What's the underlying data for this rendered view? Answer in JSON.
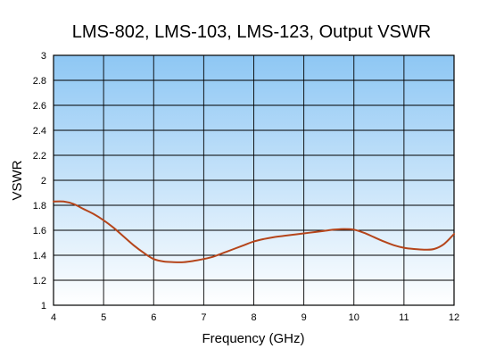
{
  "chart_data": {
    "type": "line",
    "title": "LMS-802, LMS-103, LMS-123, Output VSWR",
    "xlabel": "Frequency (GHz)",
    "ylabel": "VSWR",
    "xlim": [
      4,
      12
    ],
    "ylim": [
      1,
      3
    ],
    "x_ticks": [
      "4",
      "5",
      "6",
      "7",
      "8",
      "9",
      "10",
      "11",
      "12"
    ],
    "y_ticks": [
      "1",
      "1.2",
      "1.4",
      "1.6",
      "1.8",
      "2",
      "2.2",
      "2.4",
      "2.6",
      "2.8",
      "3"
    ],
    "grid": true,
    "legend": "none",
    "background_gradient": [
      "#8ec7f4",
      "#ffffff"
    ],
    "series": [
      {
        "color": "#b5451b",
        "x": [
          4.0,
          4.2,
          4.4,
          4.6,
          4.8,
          5.0,
          5.2,
          5.4,
          5.6,
          5.8,
          6.0,
          6.2,
          6.4,
          6.6,
          6.8,
          7.0,
          7.2,
          7.4,
          7.6,
          7.8,
          8.0,
          8.2,
          8.4,
          8.6,
          8.8,
          9.0,
          9.2,
          9.4,
          9.6,
          9.8,
          10.0,
          10.2,
          10.4,
          10.6,
          10.8,
          11.0,
          11.2,
          11.4,
          11.6,
          11.8,
          12.0
        ],
        "y": [
          1.83,
          1.83,
          1.81,
          1.77,
          1.73,
          1.68,
          1.62,
          1.55,
          1.48,
          1.42,
          1.37,
          1.35,
          1.345,
          1.345,
          1.355,
          1.37,
          1.39,
          1.42,
          1.45,
          1.48,
          1.51,
          1.53,
          1.545,
          1.555,
          1.565,
          1.575,
          1.585,
          1.595,
          1.605,
          1.61,
          1.605,
          1.58,
          1.545,
          1.51,
          1.48,
          1.46,
          1.45,
          1.445,
          1.45,
          1.49,
          1.57
        ]
      }
    ]
  }
}
